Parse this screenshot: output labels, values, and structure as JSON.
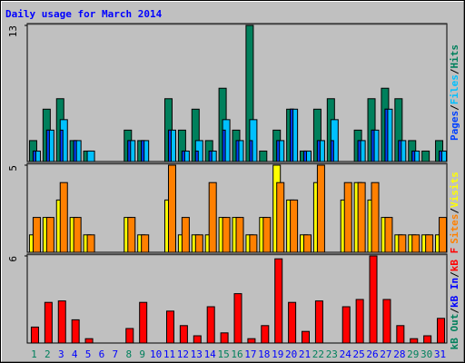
{
  "title": "Daily usage for March 2014",
  "separator": "/",
  "chart_data": [
    {
      "type": "bar",
      "ylim": [
        0,
        13
      ],
      "yticks": [
        13
      ],
      "series": [
        {
          "name": "Hits",
          "color": "#00805c",
          "values": [
            2,
            5,
            6,
            2,
            1,
            0,
            0,
            3,
            2,
            0,
            6,
            3,
            5,
            2,
            7,
            3,
            13,
            1,
            3,
            5,
            1,
            5,
            6,
            0,
            3,
            6,
            7,
            6,
            2,
            1,
            2
          ]
        },
        {
          "name": "Files",
          "color": "#00c0ff",
          "values": [
            1,
            3,
            4,
            2,
            1,
            0,
            0,
            2,
            2,
            0,
            3,
            1,
            2,
            1,
            4,
            2,
            4,
            0,
            2,
            5,
            1,
            2,
            4,
            0,
            2,
            3,
            5,
            2,
            1,
            0,
            1
          ]
        },
        {
          "name": "Pages",
          "color": "#0040ff",
          "values": [
            1,
            3,
            3,
            2,
            0,
            0,
            0,
            2,
            2,
            0,
            3,
            1,
            1,
            1,
            3,
            2,
            2,
            0,
            2,
            5,
            1,
            2,
            2,
            0,
            2,
            3,
            5,
            2,
            1,
            0,
            1
          ]
        }
      ]
    },
    {
      "type": "bar",
      "ylim": [
        0,
        5
      ],
      "yticks": [
        5
      ],
      "series": [
        {
          "name": "Visits",
          "color": "#ffff00",
          "values": [
            1,
            2,
            3,
            2,
            1,
            0,
            0,
            2,
            1,
            0,
            3,
            1,
            1,
            1,
            2,
            2,
            1,
            2,
            5,
            3,
            1,
            4,
            0,
            3,
            4,
            3,
            2,
            1,
            1,
            1,
            1
          ]
        },
        {
          "name": "Sites",
          "color": "#ff8000",
          "values": [
            2,
            2,
            4,
            2,
            1,
            0,
            0,
            2,
            1,
            0,
            5,
            2,
            1,
            4,
            2,
            2,
            1,
            2,
            4,
            3,
            1,
            5,
            0,
            4,
            4,
            4,
            2,
            1,
            1,
            1,
            2
          ]
        }
      ]
    },
    {
      "type": "bar",
      "ylim": [
        0,
        6
      ],
      "yticks": [
        6
      ],
      "categories": [
        "1",
        "2",
        "3",
        "4",
        "5",
        "6",
        "7",
        "8",
        "9",
        "10",
        "11",
        "12",
        "13",
        "14",
        "15",
        "16",
        "17",
        "18",
        "19",
        "20",
        "21",
        "22",
        "23",
        "24",
        "25",
        "26",
        "27",
        "28",
        "29",
        "30",
        "31"
      ],
      "category_colors": [
        "#00805c",
        "#00805c",
        "#0000ff",
        "#0000ff",
        "#0000ff",
        "#0000ff",
        "#0000ff",
        "#00805c",
        "#00805c",
        "#0000ff",
        "#0000ff",
        "#0000ff",
        "#0000ff",
        "#0000ff",
        "#00805c",
        "#00805c",
        "#0000ff",
        "#0000ff",
        "#0000ff",
        "#0000ff",
        "#0000ff",
        "#00805c",
        "#00805c",
        "#0000ff",
        "#0000ff",
        "#0000ff",
        "#0000ff",
        "#0000ff",
        "#00805c",
        "#00805c",
        "#0000ff"
      ],
      "series": [
        {
          "name": "kB F",
          "color": "#ff0000",
          "values": [
            1.1,
            2.8,
            2.9,
            1.6,
            0.3,
            0,
            0,
            1.0,
            2.8,
            0,
            2.2,
            1.2,
            0.5,
            2.5,
            0.7,
            3.4,
            0.3,
            1.2,
            5.8,
            2.8,
            0.8,
            2.9,
            0,
            2.5,
            3.0,
            6.0,
            3.0,
            1.2,
            0.3,
            0.5,
            1.7
          ]
        },
        {
          "name": "kB In",
          "color": "#0000ff"
        },
        {
          "name": "kB Out",
          "color": "#00805c"
        }
      ]
    }
  ]
}
